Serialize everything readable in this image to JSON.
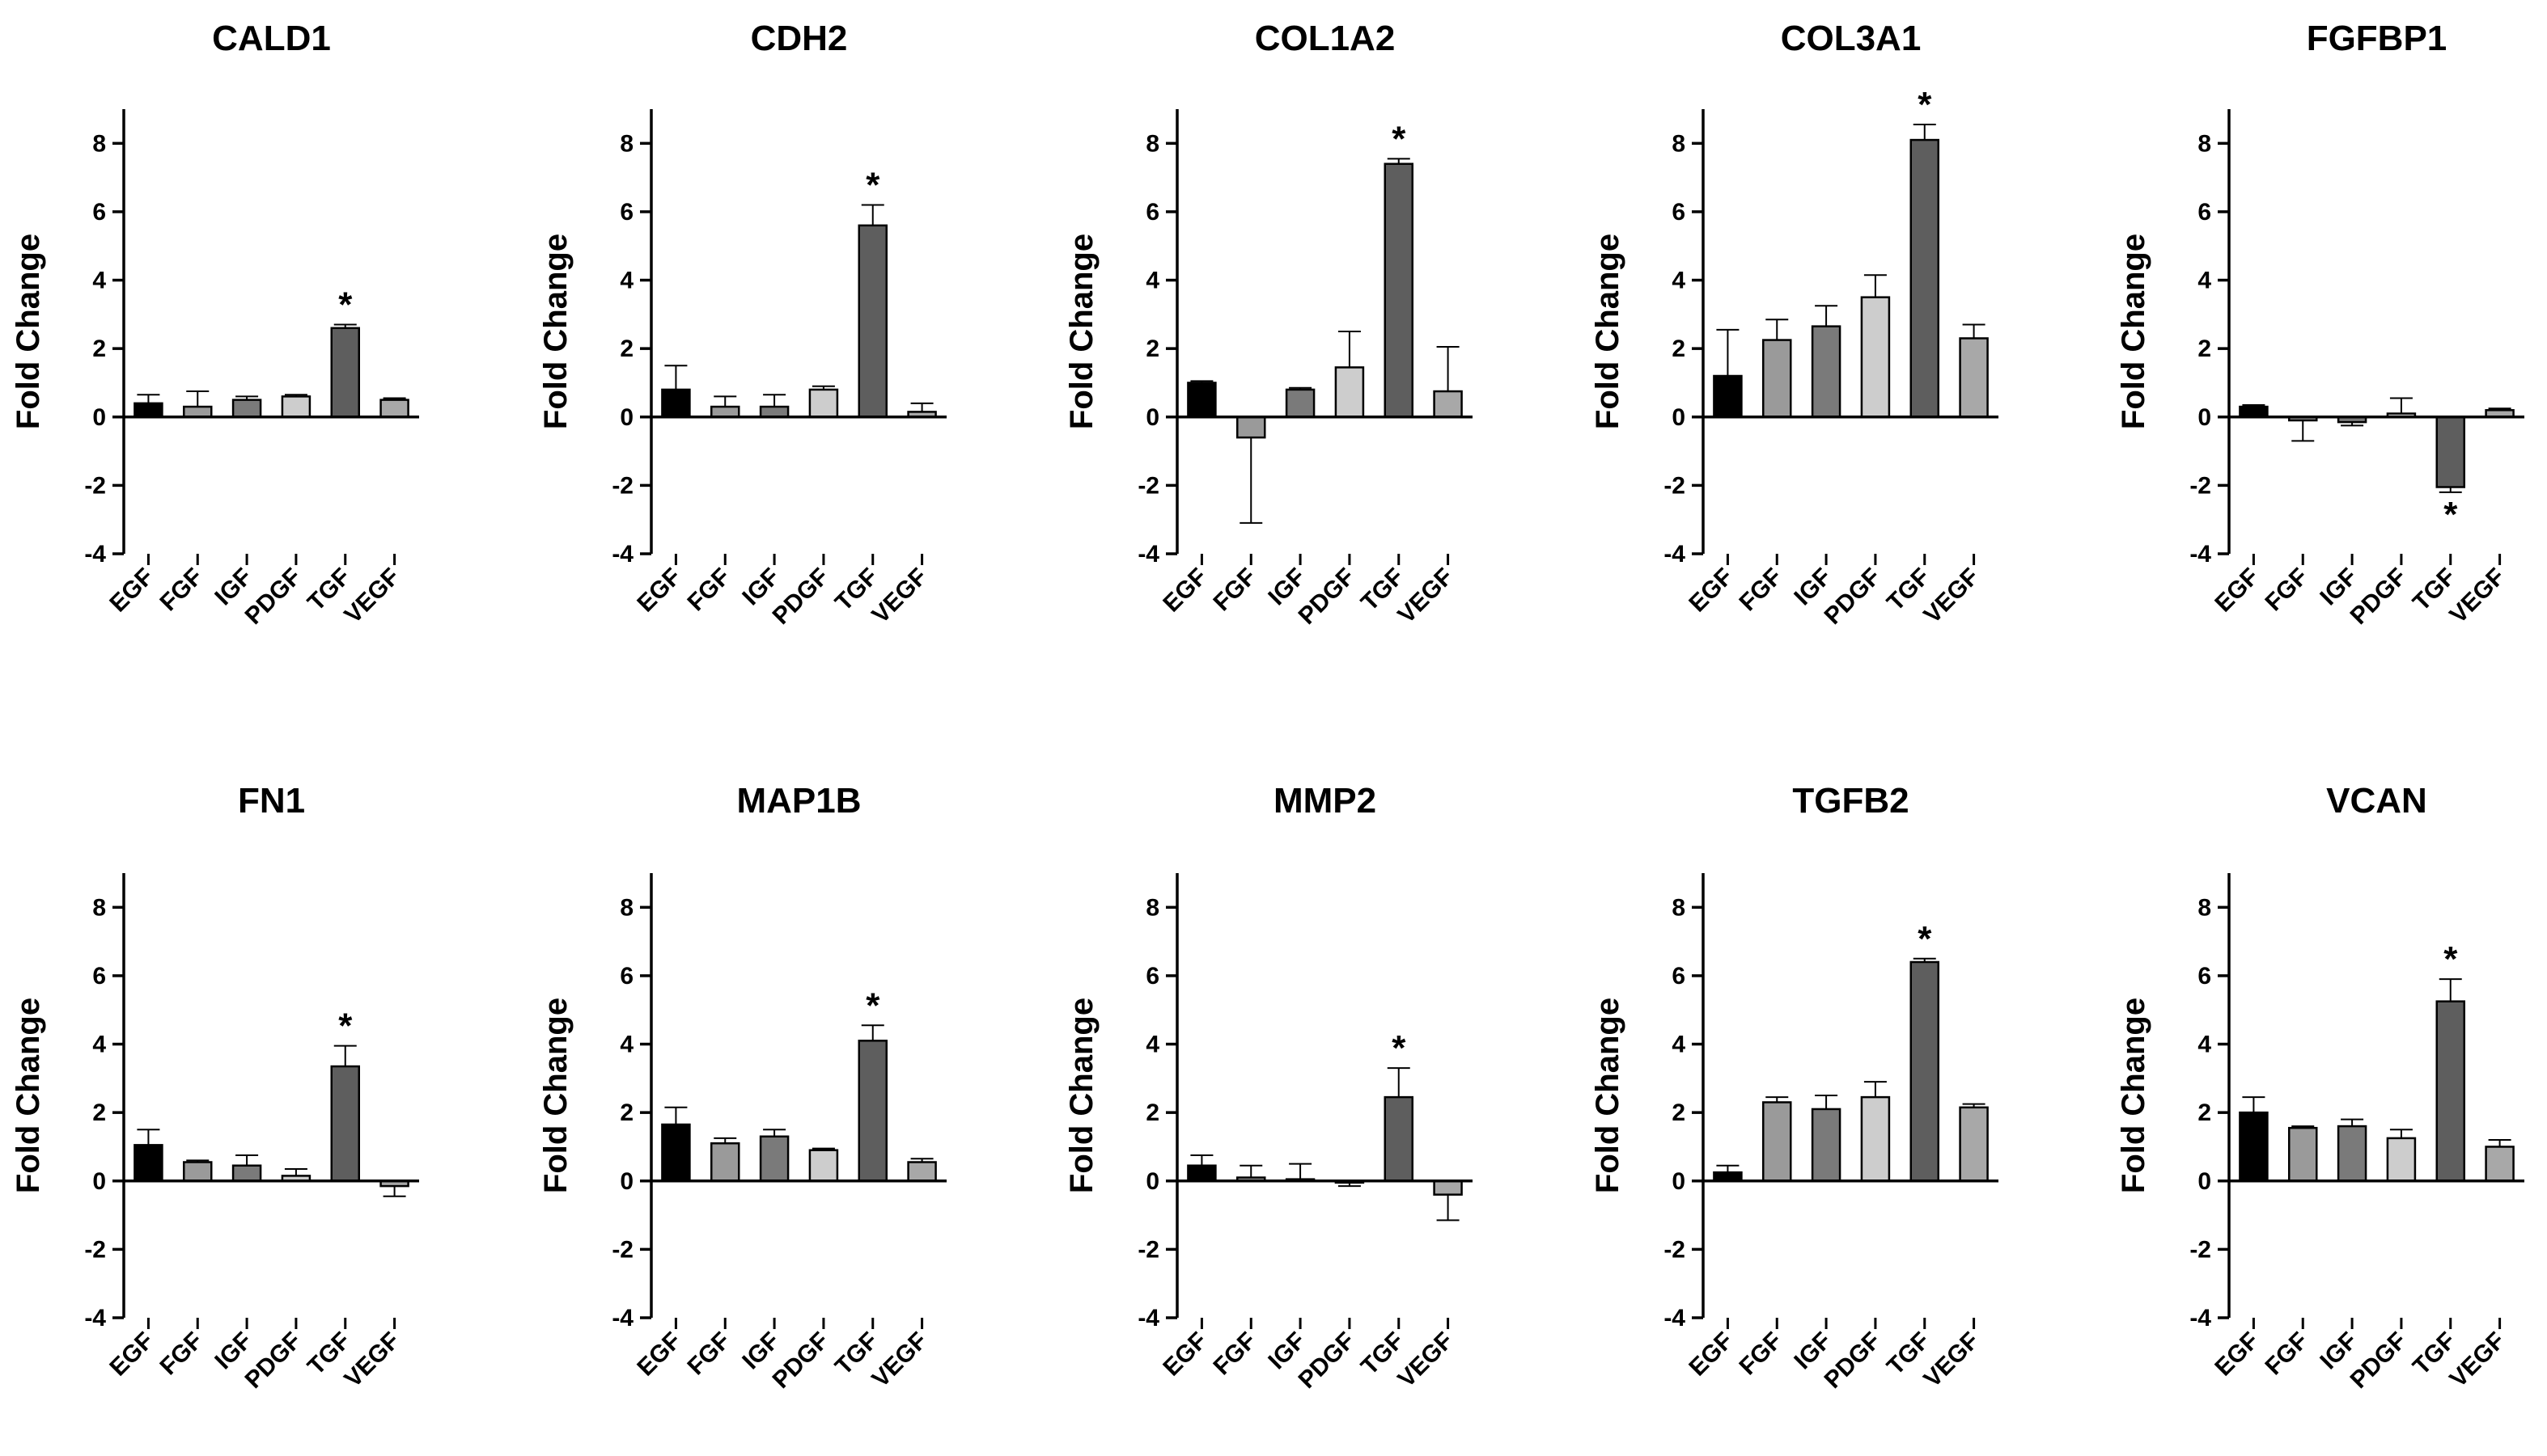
{
  "chart_data": [
    {
      "type": "bar",
      "title": "CALD1",
      "xlabel": "",
      "ylabel": "Fold Change",
      "ylim": [
        -4,
        9
      ],
      "yticks": [
        -4,
        -2,
        0,
        2,
        4,
        6,
        8
      ],
      "categories": [
        "EGF",
        "FGF",
        "IGF",
        "PDGF",
        "TGF",
        "VEGF"
      ],
      "values": [
        0.4,
        0.3,
        0.5,
        0.6,
        2.6,
        0.5
      ],
      "errors": [
        0.25,
        0.45,
        0.1,
        0.05,
        0.1,
        0.05
      ],
      "significant": [
        false,
        false,
        false,
        false,
        true,
        false
      ]
    },
    {
      "type": "bar",
      "title": "CDH2",
      "xlabel": "",
      "ylabel": "Fold Change",
      "ylim": [
        -4,
        9
      ],
      "yticks": [
        -4,
        -2,
        0,
        2,
        4,
        6,
        8
      ],
      "categories": [
        "EGF",
        "FGF",
        "IGF",
        "PDGF",
        "TGF",
        "VEGF"
      ],
      "values": [
        0.8,
        0.3,
        0.3,
        0.8,
        5.6,
        0.15
      ],
      "errors": [
        0.7,
        0.3,
        0.35,
        0.1,
        0.6,
        0.25
      ],
      "significant": [
        false,
        false,
        false,
        false,
        true,
        false
      ]
    },
    {
      "type": "bar",
      "title": "COL1A2",
      "xlabel": "",
      "ylabel": "Fold Change",
      "ylim": [
        -4,
        9
      ],
      "yticks": [
        -4,
        -2,
        0,
        2,
        4,
        6,
        8
      ],
      "categories": [
        "EGF",
        "FGF",
        "IGF",
        "PDGF",
        "TGF",
        "VEGF"
      ],
      "values": [
        1.0,
        -0.6,
        0.8,
        1.45,
        7.4,
        0.75
      ],
      "errors": [
        0.05,
        2.5,
        0.05,
        1.05,
        0.15,
        1.3
      ],
      "significant": [
        false,
        false,
        false,
        false,
        true,
        false
      ]
    },
    {
      "type": "bar",
      "title": "COL3A1",
      "xlabel": "",
      "ylabel": "Fold Change",
      "ylim": [
        -4,
        9
      ],
      "yticks": [
        -4,
        -2,
        0,
        2,
        4,
        6,
        8
      ],
      "categories": [
        "EGF",
        "FGF",
        "IGF",
        "PDGF",
        "TGF",
        "VEGF"
      ],
      "values": [
        1.2,
        2.25,
        2.65,
        3.5,
        8.1,
        2.3
      ],
      "errors": [
        1.35,
        0.6,
        0.6,
        0.65,
        0.45,
        0.4
      ],
      "significant": [
        false,
        false,
        false,
        false,
        true,
        false
      ]
    },
    {
      "type": "bar",
      "title": "FGFBP1",
      "xlabel": "",
      "ylabel": "Fold Change",
      "ylim": [
        -4,
        9
      ],
      "yticks": [
        -4,
        -2,
        0,
        2,
        4,
        6,
        8
      ],
      "categories": [
        "EGF",
        "FGF",
        "IGF",
        "PDGF",
        "TGF",
        "VEGF"
      ],
      "values": [
        0.3,
        -0.1,
        -0.15,
        0.1,
        -2.05,
        0.2
      ],
      "errors": [
        0.05,
        0.6,
        0.1,
        0.45,
        0.15,
        0.05
      ],
      "significant": [
        false,
        false,
        false,
        false,
        true,
        false
      ]
    },
    {
      "type": "bar",
      "title": "FN1",
      "xlabel": "",
      "ylabel": "Fold Change",
      "ylim": [
        -4,
        9
      ],
      "yticks": [
        -4,
        -2,
        0,
        2,
        4,
        6,
        8
      ],
      "categories": [
        "EGF",
        "FGF",
        "IGF",
        "PDGF",
        "TGF",
        "VEGF"
      ],
      "values": [
        1.05,
        0.55,
        0.45,
        0.15,
        3.35,
        -0.15
      ],
      "errors": [
        0.45,
        0.05,
        0.3,
        0.2,
        0.6,
        0.3
      ],
      "significant": [
        false,
        false,
        false,
        false,
        true,
        false
      ]
    },
    {
      "type": "bar",
      "title": "MAP1B",
      "xlabel": "",
      "ylabel": "Fold Change",
      "ylim": [
        -4,
        9
      ],
      "yticks": [
        -4,
        -2,
        0,
        2,
        4,
        6,
        8
      ],
      "categories": [
        "EGF",
        "FGF",
        "IGF",
        "PDGF",
        "TGF",
        "VEGF"
      ],
      "values": [
        1.65,
        1.1,
        1.3,
        0.9,
        4.1,
        0.55
      ],
      "errors": [
        0.5,
        0.15,
        0.2,
        0.05,
        0.45,
        0.1
      ],
      "significant": [
        false,
        false,
        false,
        false,
        true,
        false
      ]
    },
    {
      "type": "bar",
      "title": "MMP2",
      "xlabel": "",
      "ylabel": "Fold Change",
      "ylim": [
        -4,
        9
      ],
      "yticks": [
        -4,
        -2,
        0,
        2,
        4,
        6,
        8
      ],
      "categories": [
        "EGF",
        "FGF",
        "IGF",
        "PDGF",
        "TGF",
        "VEGF"
      ],
      "values": [
        0.45,
        0.1,
        0.05,
        -0.05,
        2.45,
        -0.4
      ],
      "errors": [
        0.3,
        0.35,
        0.45,
        0.1,
        0.85,
        0.75
      ],
      "significant": [
        false,
        false,
        false,
        false,
        true,
        false
      ]
    },
    {
      "type": "bar",
      "title": "TGFB2",
      "xlabel": "",
      "ylabel": "Fold Change",
      "ylim": [
        -4,
        9
      ],
      "yticks": [
        -4,
        -2,
        0,
        2,
        4,
        6,
        8
      ],
      "categories": [
        "EGF",
        "FGF",
        "IGF",
        "PDGF",
        "TGF",
        "VEGF"
      ],
      "values": [
        0.25,
        2.3,
        2.1,
        2.45,
        6.4,
        2.15
      ],
      "errors": [
        0.2,
        0.15,
        0.4,
        0.45,
        0.1,
        0.1
      ],
      "significant": [
        false,
        false,
        false,
        false,
        true,
        false
      ]
    },
    {
      "type": "bar",
      "title": "VCAN",
      "xlabel": "",
      "ylabel": "Fold Change",
      "ylim": [
        -4,
        9
      ],
      "yticks": [
        -4,
        -2,
        0,
        2,
        4,
        6,
        8
      ],
      "categories": [
        "EGF",
        "FGF",
        "IGF",
        "PDGF",
        "TGF",
        "VEGF"
      ],
      "values": [
        2.0,
        1.55,
        1.6,
        1.25,
        5.25,
        1.0
      ],
      "errors": [
        0.45,
        0.05,
        0.2,
        0.25,
        0.65,
        0.2
      ],
      "significant": [
        false,
        false,
        false,
        false,
        true,
        false
      ]
    }
  ],
  "colors": {
    "EGF": "#000000",
    "FGF": "#9a9a9a",
    "IGF": "#7a7a7a",
    "PDGF": "#cdcdcd",
    "TGF": "#5e5e5e",
    "VEGF": "#a8a8a8"
  },
  "significance_marker": "*"
}
